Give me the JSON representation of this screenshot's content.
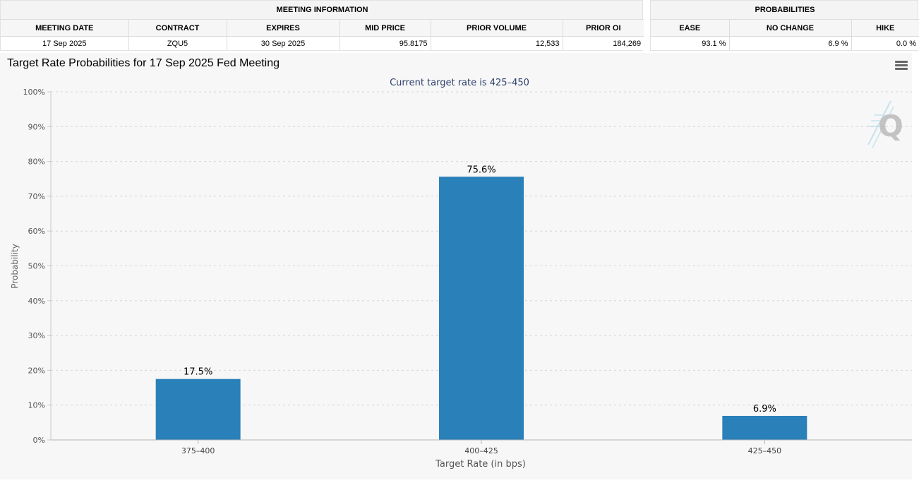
{
  "meeting_info": {
    "title": "MEETING INFORMATION",
    "headers": [
      "MEETING DATE",
      "CONTRACT",
      "EXPIRES",
      "MID PRICE",
      "PRIOR VOLUME",
      "PRIOR OI"
    ],
    "row": [
      "17 Sep 2025",
      "ZQU5",
      "30 Sep 2025",
      "95.8175",
      "12,533",
      "184,269"
    ]
  },
  "probabilities": {
    "title": "PROBABILITIES",
    "headers": [
      "EASE",
      "NO CHANGE",
      "HIKE"
    ],
    "row": [
      "93.1 %",
      "6.9 %",
      "0.0 %"
    ]
  },
  "chart_title": "Target Rate Probabilities for 17 Sep 2025 Fed Meeting",
  "chart_data": {
    "type": "bar",
    "subtitle": "Current target rate is 425–450",
    "categories": [
      "375–400",
      "400–425",
      "425–450"
    ],
    "values": [
      17.5,
      75.6,
      6.9
    ],
    "data_labels": [
      "17.5%",
      "75.6%",
      "6.9%"
    ],
    "xlabel": "Target Rate (in bps)",
    "ylabel": "Probability",
    "ylim": [
      0,
      100
    ],
    "yticks": [
      "0%",
      "10%",
      "20%",
      "30%",
      "40%",
      "50%",
      "60%",
      "70%",
      "80%",
      "90%",
      "100%"
    ],
    "grid": true,
    "bar_color": "#2a80b9",
    "watermark_glyph": "Q"
  }
}
